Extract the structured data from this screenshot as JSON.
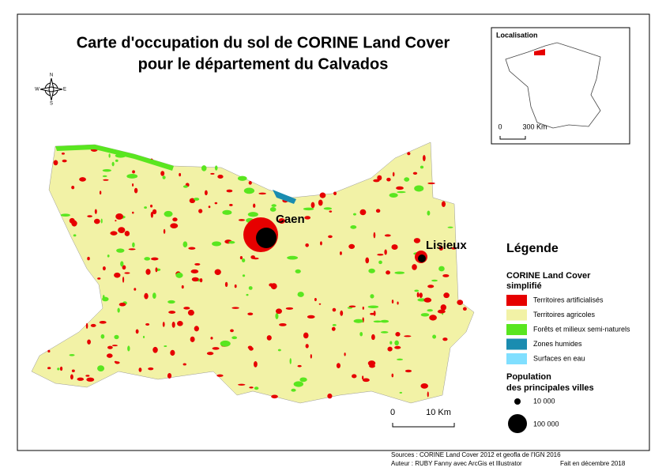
{
  "title": [
    "Carte d'occupation du sol de CORINE Land Cover",
    "pour le département du Calvados"
  ],
  "compass": [
    "N",
    "S",
    "E",
    "W"
  ],
  "inset": {
    "title": "Localisation",
    "scale": [
      "0",
      "300 Km"
    ]
  },
  "cities": [
    "Caen",
    "Lisieux"
  ],
  "scale": [
    "0",
    "10 Km"
  ],
  "legend": {
    "title": "Légende",
    "subtitle": [
      "CORINE Land Cover",
      "simplifié"
    ],
    "items": [
      {
        "label": "Territoires artificialisés",
        "color": "#e60000"
      },
      {
        "label": "Territoires agricoles",
        "color": "#f2f2a6"
      },
      {
        "label": "Forêts et milieux semi-naturels",
        "color": "#59e61f"
      },
      {
        "label": "Zones humides",
        "color": "#1a8cb0"
      },
      {
        "label": "Surfaces en eau",
        "color": "#80dfff"
      }
    ],
    "population_title": [
      "Population",
      "des principales villes"
    ],
    "population": [
      "10 000",
      "100 000"
    ]
  },
  "sources": [
    "Sources : CORINE Land Cover 2012 et geofla de l'IGN 2016",
    "Auteur : RUBY Fanny avec ArcGis et Illustrator",
    "Fait en décembre 2018"
  ]
}
